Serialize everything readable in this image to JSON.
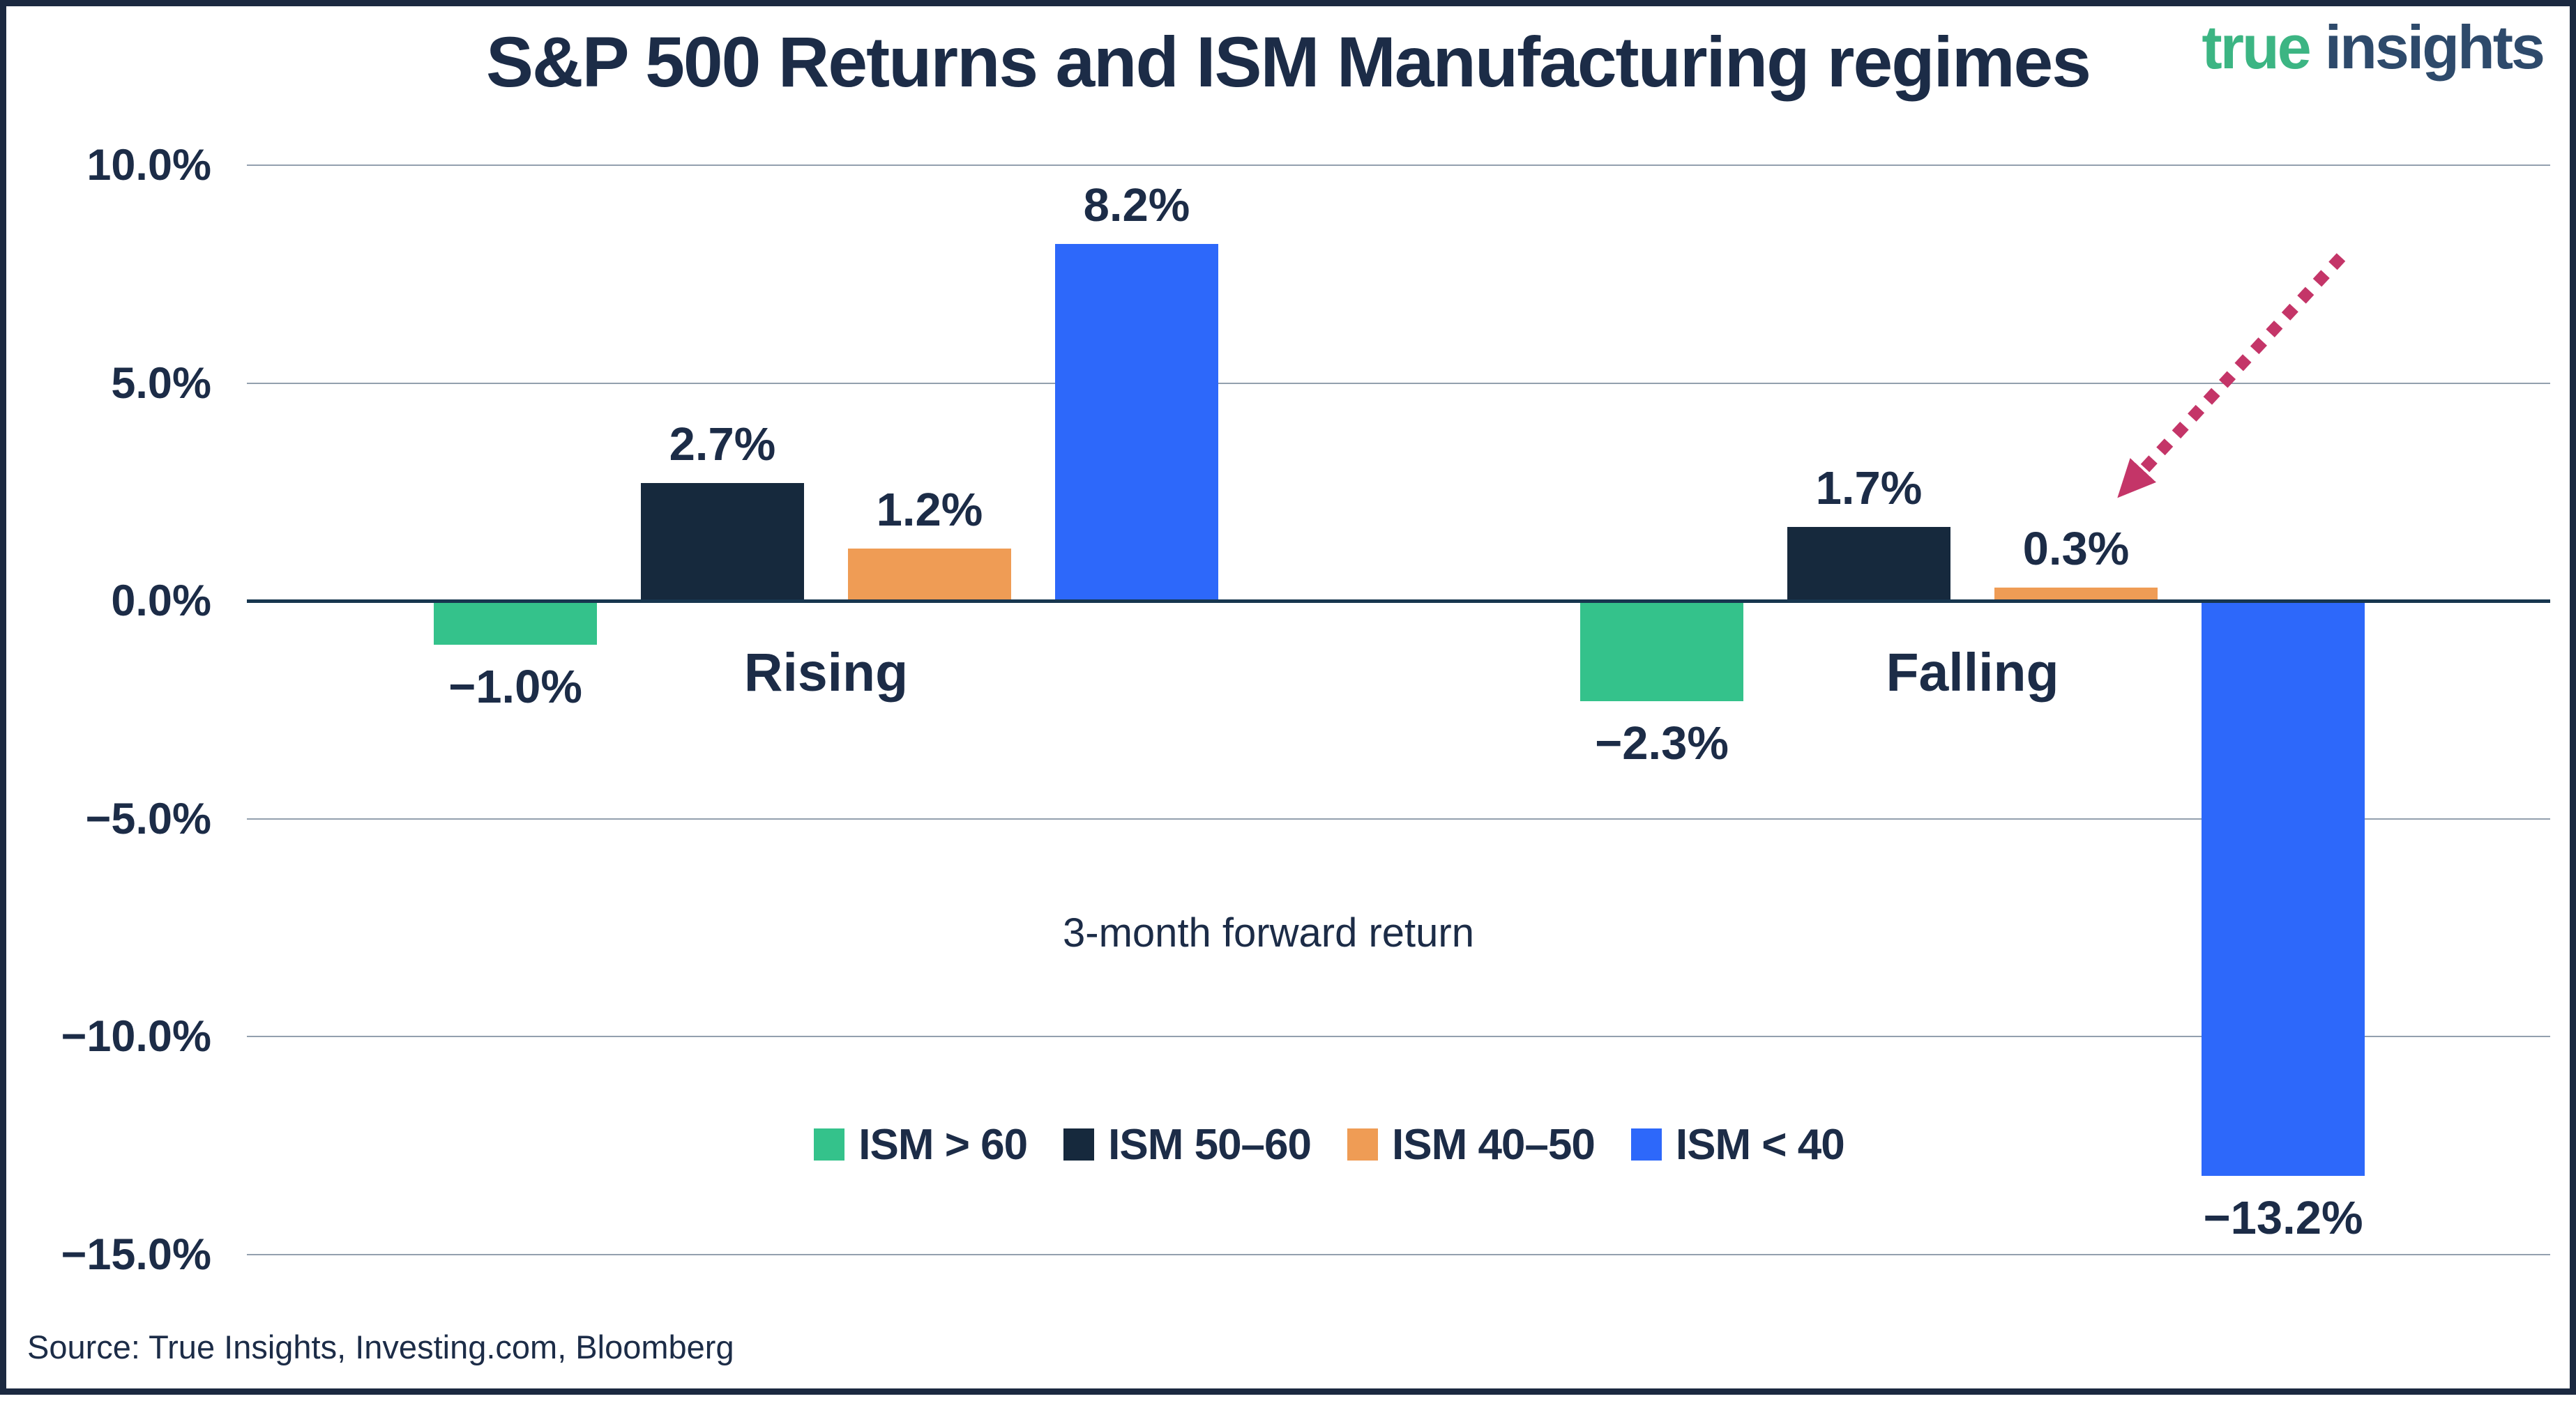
{
  "title": "S&P 500 Returns and ISM Manufacturing regimes",
  "logo": {
    "part1": "true",
    "part2": "insights",
    "green": "#3cb583",
    "navy": "#2e4a6b"
  },
  "annotation": "3-month forward return",
  "source": "Source: True Insights, Investing.com, Bloomberg",
  "colors": {
    "text_navy": "#1c2c47",
    "gridline": "#93a0ae",
    "zero_axis": "#17364f",
    "arrow": "#c43568",
    "frame_border": "#1b2940",
    "background": "#ffffff"
  },
  "chart_data": {
    "type": "bar",
    "categories": [
      "Rising",
      "Falling"
    ],
    "series": [
      {
        "name": "ISM > 60",
        "color": "#34c28b",
        "values": [
          -1.0,
          -2.3
        ]
      },
      {
        "name": "ISM 50–60",
        "color": "#16293d",
        "values": [
          2.7,
          1.7
        ]
      },
      {
        "name": "ISM 40–50",
        "color": "#ef9c55",
        "values": [
          1.2,
          0.3
        ]
      },
      {
        "name": "ISM < 40",
        "color": "#2d68fa",
        "values": [
          8.2,
          -13.2
        ]
      }
    ],
    "value_labels": [
      [
        "−1.0%",
        "2.7%",
        "1.2%",
        "8.2%"
      ],
      [
        "−2.3%",
        "1.7%",
        "0.3%",
        "−13.2%"
      ]
    ],
    "y_ticks": [
      {
        "value": 10,
        "label": "10.0%"
      },
      {
        "value": 5,
        "label": "5.0%"
      },
      {
        "value": 0,
        "label": "0.0%"
      },
      {
        "value": -5,
        "label": "−5.0%"
      },
      {
        "value": -10,
        "label": "−10.0%"
      },
      {
        "value": -15,
        "label": "−15.0%"
      }
    ],
    "ylim": [
      -15,
      10
    ],
    "xlabel": "",
    "ylabel": "",
    "grid": "horizontal",
    "legend_position": "bottom-center",
    "annotation_arrow": {
      "points_to": "Falling ISM 40–50 bar (0.3%)",
      "color": "#c43568",
      "style": "dotted"
    }
  }
}
